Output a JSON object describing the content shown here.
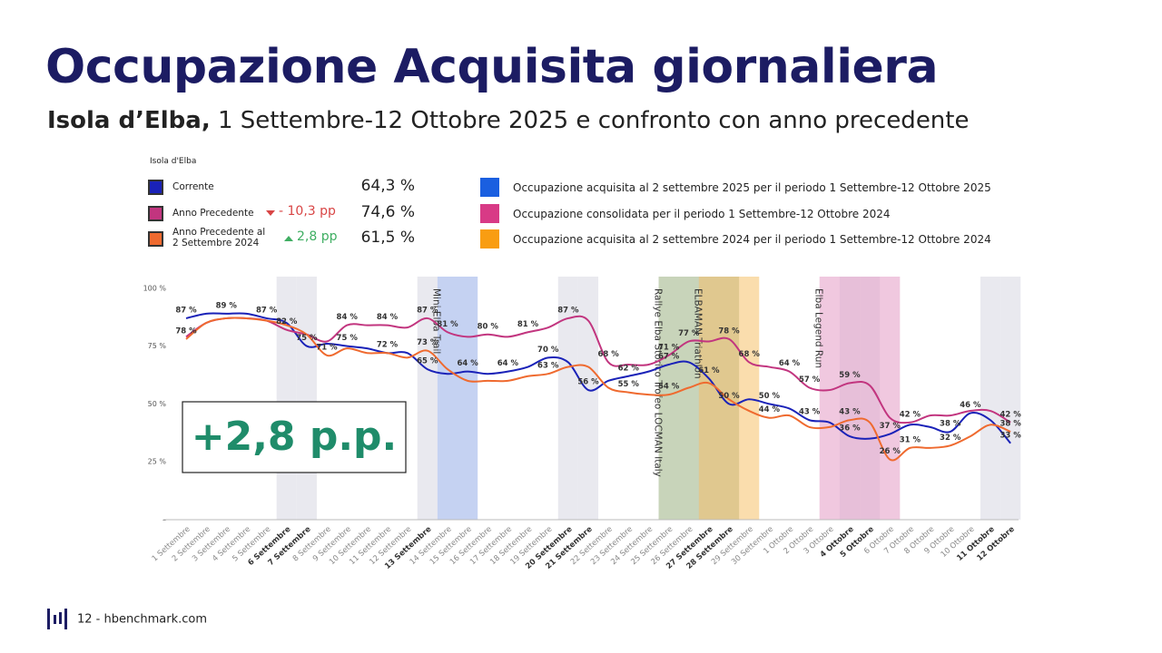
{
  "header": {
    "title": "Occupazione Acquisita giornaliera",
    "subtitle_bold": "Isola d’Elba,",
    "subtitle": "1 Settembre-12 Ottobre 2025 e confronto con anno precedente"
  },
  "legend_panel": {
    "title": "Isola d'Elba",
    "rows": [
      {
        "value": "64,3 %"
      },
      {
        "delta": "- 10,3 pp",
        "delta_color": "#d84545",
        "delta_direction": "down",
        "value": "74,6 %"
      },
      {
        "delta": "2,8 pp",
        "delta_color": "#3fae62",
        "delta_direction": "up",
        "value": "61,5 %"
      }
    ],
    "descriptions": [
      {
        "label": "Occupazione acquisita al 2 settembre 2025 per il periodo 1 Settembre-12 Ottobre 2025",
        "color": "#1a5fe0"
      },
      {
        "label": "Occupazione consolidata per il periodo 1 Settembre-12 Ottobre 2024",
        "color": "#d83a86"
      },
      {
        "label": "Occupazione acquisita al 2 settembre 2024 per il periodo 1 Settembre-12 Ottobre 2024",
        "color": "#f99d12"
      }
    ]
  },
  "callout": "+2,8 p.p.",
  "footer": "12 - hbenchmark.com",
  "chart_data": {
    "type": "line",
    "categories": [
      "1 Settembre",
      "2 Settembre",
      "3 Settembre",
      "4 Settembre",
      "5 Settembre",
      "6 Settembre",
      "7 Settembre",
      "8 Settembre",
      "9 Settembre",
      "10 Settembre",
      "11 Settembre",
      "12 Settembre",
      "13 Settembre",
      "14 Settembre",
      "15 Settembre",
      "16 Settembre",
      "17 Settembre",
      "18 Settembre",
      "19 Settembre",
      "20 Settembre",
      "21 Settembre",
      "22 Settembre",
      "23 Settembre",
      "24 Settembre",
      "25 Settembre",
      "26 Settembre",
      "27 Settembre",
      "28 Settembre",
      "29 Settembre",
      "30 Settembre",
      "1 Ottobre",
      "2 Ottobre",
      "3 Ottobre",
      "4 Ottobre",
      "5 Ottobre",
      "6 Ottobre",
      "7 Ottobre",
      "8 Ottobre",
      "9 Ottobre",
      "10 Ottobre",
      "11 Ottobre",
      "12 Ottobre"
    ],
    "series": [
      {
        "name": "Corrente",
        "color": "#1a22b8",
        "values": [
          87,
          89,
          89,
          89,
          87,
          85,
          75,
          76,
          75,
          74,
          72,
          72,
          65,
          63,
          64,
          63,
          64,
          66,
          70,
          68,
          56,
          60,
          62,
          64,
          67,
          68,
          61,
          50,
          52,
          50,
          48,
          43,
          42,
          36,
          35,
          37,
          41,
          40,
          38,
          46,
          43,
          33
        ],
        "value_labels": [
          "87 %",
          null,
          "89 %",
          null,
          "87 %",
          null,
          "75 %",
          null,
          "75 %",
          null,
          "72 %",
          null,
          "65 %",
          null,
          "64 %",
          null,
          "64 %",
          null,
          "70 %",
          null,
          "56 %",
          null,
          "62 %",
          null,
          "67 %",
          null,
          "61 %",
          "50 %",
          null,
          "50 %",
          null,
          "43 %",
          null,
          "36 %",
          null,
          "37 %",
          null,
          null,
          "38 %",
          "46 %",
          null,
          "33 %"
        ]
      },
      {
        "name": "Anno Precedente",
        "color": "#c2357f",
        "values": [
          79,
          85,
          87,
          87,
          86,
          82,
          80,
          77,
          84,
          84,
          84,
          83,
          87,
          81,
          79,
          80,
          79,
          81,
          83,
          87,
          86,
          68,
          67,
          67,
          71,
          77,
          77,
          78,
          68,
          66,
          64,
          57,
          56,
          59,
          58,
          44,
          42,
          45,
          45,
          47,
          47,
          42
        ],
        "value_labels": [
          null,
          null,
          null,
          null,
          null,
          "82 %",
          null,
          null,
          "84 %",
          null,
          "84 %",
          null,
          "87 %",
          "81 %",
          null,
          "80 %",
          null,
          "81 %",
          null,
          "87 %",
          null,
          "68 %",
          null,
          null,
          "71 %",
          "77 %",
          null,
          "78 %",
          "68 %",
          null,
          "64 %",
          "57 %",
          null,
          "59 %",
          null,
          null,
          "42 %",
          null,
          null,
          null,
          null,
          "42 %"
        ]
      },
      {
        "name": "Anno Precedente al 2 Settembre 2024",
        "color": "#ef6a2f",
        "values": [
          78,
          85,
          87,
          87,
          86,
          84,
          80,
          71,
          74,
          72,
          72,
          70,
          73,
          65,
          60,
          60,
          60,
          62,
          63,
          66,
          66,
          57,
          55,
          54,
          54,
          57,
          59,
          52,
          47,
          44,
          45,
          40,
          40,
          43,
          42,
          26,
          31,
          31,
          32,
          36,
          41,
          38
        ],
        "value_labels": [
          "78 %",
          null,
          null,
          null,
          null,
          null,
          null,
          "71 %",
          null,
          null,
          null,
          null,
          "73 %",
          null,
          null,
          null,
          null,
          null,
          "63 %",
          null,
          null,
          null,
          "55 %",
          null,
          "54 %",
          null,
          null,
          null,
          null,
          "44 %",
          null,
          null,
          null,
          "43 %",
          null,
          "26 %",
          "31 %",
          null,
          "32 %",
          null,
          null,
          "38 %"
        ]
      }
    ],
    "ylim": [
      0,
      105
    ],
    "yticks": [
      {
        "value": 0,
        "label": "–"
      },
      {
        "value": 25,
        "label": "25 %"
      },
      {
        "value": 50,
        "label": "50 %"
      },
      {
        "value": 75,
        "label": "75 %"
      },
      {
        "value": 100,
        "label": "100 %"
      }
    ],
    "grid": false,
    "weekends": {
      "color": "#e9e9ef",
      "days": [
        5,
        6,
        12,
        19,
        20,
        26,
        27,
        33,
        34,
        40,
        41
      ]
    },
    "events": [
      {
        "label": "Mini Elba Trail",
        "start": 13,
        "end": 14,
        "color": "#9fb4ea"
      },
      {
        "label": "Rallye Elba Storico Trofeo LOCMAN Italy",
        "start": 24,
        "end": 27,
        "color": "#a4b78c"
      },
      {
        "label": "ELBAMAN Triathlon",
        "start": 26,
        "end": 28,
        "color": "#f6c676"
      },
      {
        "label": "Elba Legend Run",
        "start": 32,
        "end": 35,
        "color": "#e6a3c9"
      }
    ]
  }
}
